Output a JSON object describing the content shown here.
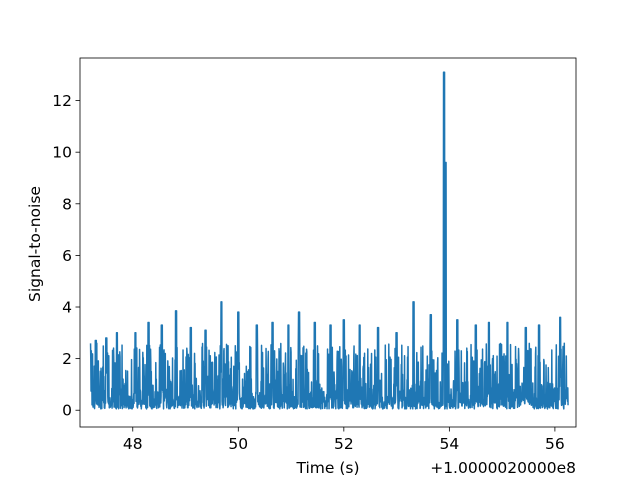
{
  "chart_data": {
    "type": "line",
    "title": "",
    "xlabel": "Time (s)",
    "ylabel": "Signal-to-noise",
    "x_offset_label": "+1.0000020000e8",
    "xlim": [
      47.0,
      56.4
    ],
    "ylim": [
      -0.65,
      13.65
    ],
    "x_ticks": [
      48,
      50,
      52,
      54,
      56
    ],
    "x_tick_labels": [
      "48",
      "50",
      "52",
      "54",
      "56"
    ],
    "y_ticks": [
      0,
      2,
      4,
      6,
      8,
      10,
      12
    ],
    "y_tick_labels": [
      "0",
      "2",
      "4",
      "6",
      "8",
      "10",
      "12"
    ],
    "grid": false,
    "line_color": "#1f77b4",
    "series": [
      {
        "x_start": 47.2,
        "x_end": 56.25,
        "noise_floor": 0.05,
        "typical_max": 2.6,
        "peaks": [
          {
            "x": 47.3,
            "y": 2.7
          },
          {
            "x": 47.5,
            "y": 2.8
          },
          {
            "x": 47.7,
            "y": 3.0
          },
          {
            "x": 48.05,
            "y": 3.0
          },
          {
            "x": 48.3,
            "y": 3.4
          },
          {
            "x": 48.55,
            "y": 3.3
          },
          {
            "x": 48.82,
            "y": 3.85
          },
          {
            "x": 49.1,
            "y": 3.2
          },
          {
            "x": 49.38,
            "y": 3.1
          },
          {
            "x": 49.68,
            "y": 4.2
          },
          {
            "x": 50.0,
            "y": 3.8
          },
          {
            "x": 50.35,
            "y": 3.3
          },
          {
            "x": 50.65,
            "y": 3.4
          },
          {
            "x": 50.95,
            "y": 3.3
          },
          {
            "x": 51.15,
            "y": 3.8
          },
          {
            "x": 51.45,
            "y": 3.4
          },
          {
            "x": 51.75,
            "y": 3.3
          },
          {
            "x": 52.0,
            "y": 3.5
          },
          {
            "x": 52.3,
            "y": 3.3
          },
          {
            "x": 52.65,
            "y": 3.2
          },
          {
            "x": 53.0,
            "y": 3.0
          },
          {
            "x": 53.32,
            "y": 4.2
          },
          {
            "x": 53.65,
            "y": 3.7
          },
          {
            "x": 53.9,
            "y": 13.1
          },
          {
            "x": 53.93,
            "y": 9.6
          },
          {
            "x": 54.15,
            "y": 3.5
          },
          {
            "x": 54.5,
            "y": 3.3
          },
          {
            "x": 54.75,
            "y": 3.4
          },
          {
            "x": 55.1,
            "y": 3.4
          },
          {
            "x": 55.45,
            "y": 3.2
          },
          {
            "x": 55.7,
            "y": 3.3
          },
          {
            "x": 56.1,
            "y": 3.6
          }
        ]
      }
    ]
  }
}
